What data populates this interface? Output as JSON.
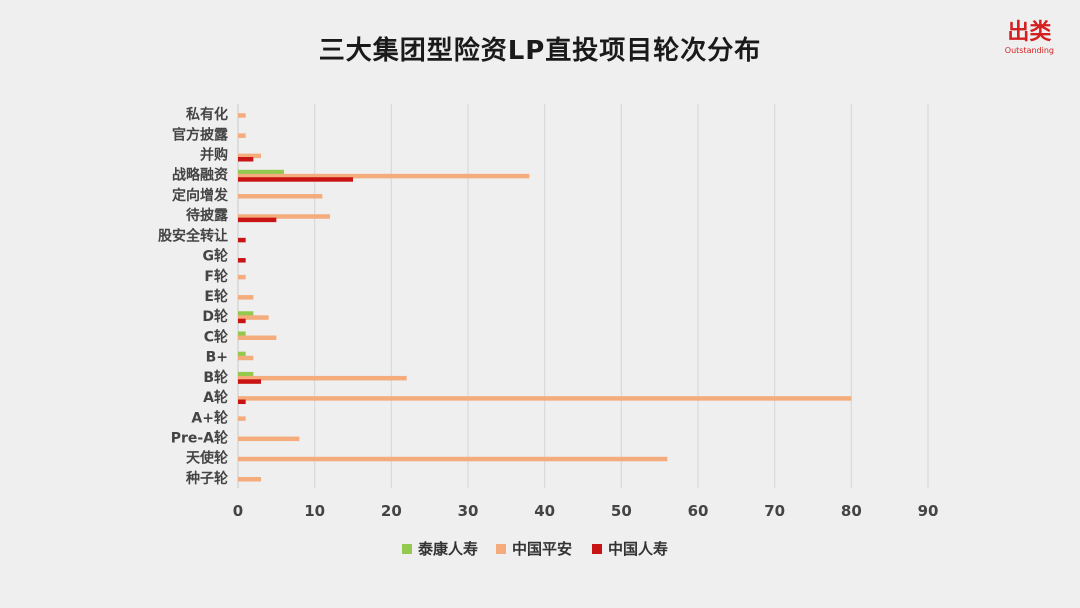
{
  "page": {
    "title": "三大集团型险资LP直投项目轮次分布",
    "logo": {
      "main": "出类",
      "sub": "Outstanding"
    }
  },
  "chart_data": {
    "type": "bar",
    "orientation": "horizontal",
    "title": "三大集团型险资LP直投项目轮次分布",
    "categories": [
      "私有化",
      "官方披露",
      "并购",
      "战略融资",
      "定向增发",
      "待披露",
      "股安全转让",
      "G轮",
      "F轮",
      "E轮",
      "D轮",
      "C轮",
      "B+",
      "B轮",
      "A轮",
      "A+轮",
      "Pre-A轮",
      "天使轮",
      "种子轮"
    ],
    "series": [
      {
        "name": "泰康人寿",
        "color": "#92c94e",
        "values": [
          0,
          0,
          0,
          6,
          0,
          0,
          0,
          0,
          0,
          0,
          2,
          1,
          1,
          2,
          0,
          0,
          0,
          0,
          0
        ]
      },
      {
        "name": "中国平安",
        "color": "#f4ac7c",
        "values": [
          1,
          1,
          3,
          38,
          11,
          12,
          0,
          0,
          1,
          2,
          4,
          5,
          2,
          22,
          80,
          1,
          8,
          56,
          3
        ]
      },
      {
        "name": "中国人寿",
        "color": "#c81414",
        "values": [
          0,
          0,
          2,
          15,
          0,
          5,
          1,
          1,
          0,
          0,
          1,
          0,
          0,
          3,
          1,
          0,
          0,
          0,
          0
        ]
      }
    ],
    "xlim": [
      0,
      90
    ],
    "xticks": [
      0,
      10,
      20,
      30,
      40,
      50,
      60,
      70,
      80,
      90
    ],
    "grid": true,
    "legend_position": "bottom"
  }
}
